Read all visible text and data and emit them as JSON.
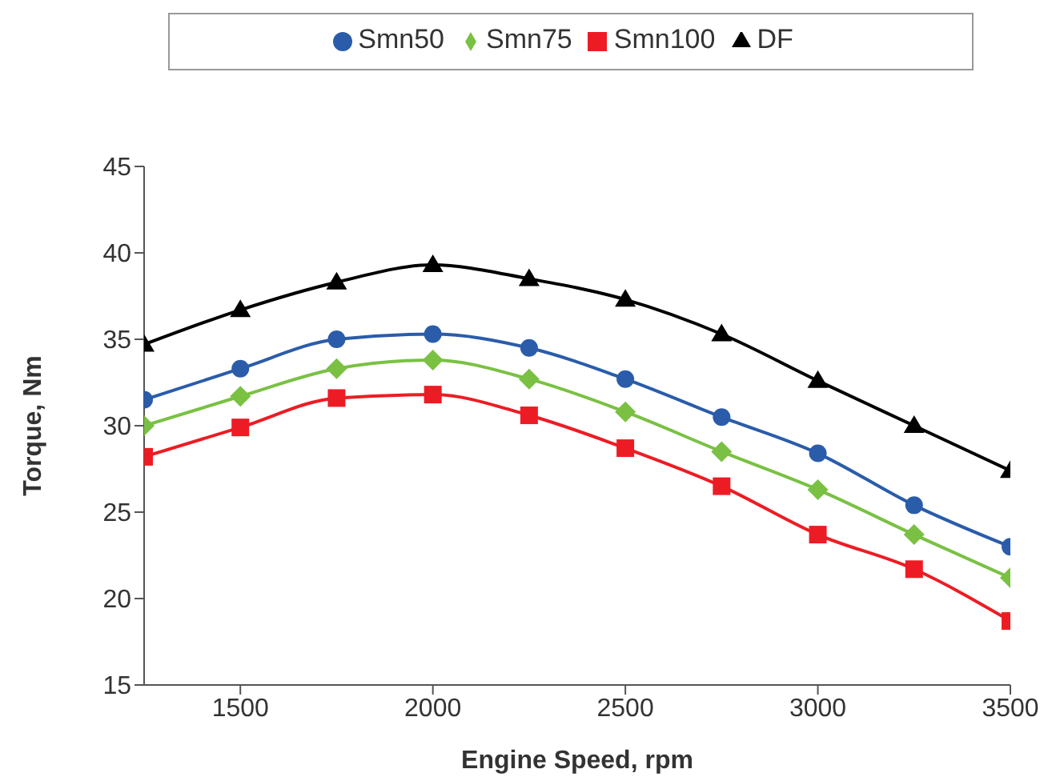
{
  "chart_data": {
    "type": "line",
    "xlabel": "Engine Speed, rpm",
    "ylabel": "Torque, Nm",
    "x": [
      1250,
      1500,
      1750,
      2000,
      2250,
      2500,
      2750,
      3000,
      3250,
      3500
    ],
    "xlim": [
      1250,
      3500
    ],
    "xticks": [
      1500,
      2000,
      2500,
      3000,
      3500
    ],
    "ylim": [
      15,
      45
    ],
    "yticks": [
      15,
      20,
      25,
      30,
      35,
      40,
      45
    ],
    "grid": false,
    "legend": "top",
    "series": [
      {
        "name": "Smn50",
        "color": "#2a5caa",
        "marker": "circle",
        "values": [
          31.5,
          33.3,
          35,
          35.3,
          34.5,
          32.7,
          30.5,
          28.4,
          25.4,
          23
        ]
      },
      {
        "name": "Smn75",
        "color": "#7ac143",
        "marker": "diamond",
        "values": [
          30,
          31.7,
          33.3,
          33.8,
          32.7,
          30.8,
          28.5,
          26.3,
          23.7,
          21.2
        ]
      },
      {
        "name": "Smn100",
        "color": "#ed1c24",
        "marker": "square",
        "values": [
          28.2,
          29.9,
          31.6,
          31.8,
          30.6,
          28.7,
          26.5,
          23.7,
          21.7,
          18.7
        ]
      },
      {
        "name": "DF",
        "color": "#000000",
        "marker": "triangle",
        "values": [
          34.7,
          36.7,
          38.3,
          39.3,
          38.5,
          37.3,
          35.3,
          32.6,
          30,
          27.4
        ]
      }
    ]
  }
}
